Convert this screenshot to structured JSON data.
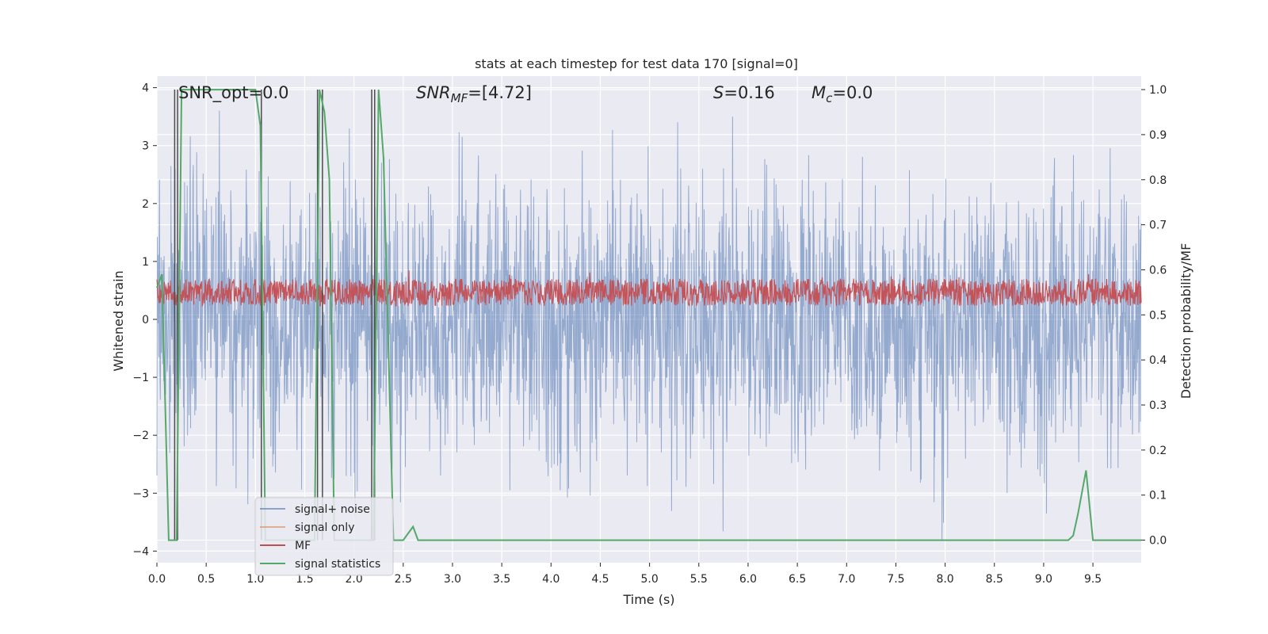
{
  "chart_data": {
    "type": "line",
    "title": "stats at each timestep for test data 170 [signal=0]",
    "xlabel": "Time (s)",
    "ylabel_left": "Whitened strain",
    "ylabel_right": "Detection probability/MF",
    "xlim": [
      0.0,
      9.99
    ],
    "ylim_left": [
      -4.2,
      4.2
    ],
    "ylim_right": [
      -0.05,
      1.03
    ],
    "x_ticks": [
      "0.0",
      "0.5",
      "1.0",
      "1.5",
      "2.0",
      "2.5",
      "3.0",
      "3.5",
      "4.0",
      "4.5",
      "5.0",
      "5.5",
      "6.0",
      "6.5",
      "7.0",
      "7.5",
      "8.0",
      "8.5",
      "9.0",
      "9.5"
    ],
    "y_left_ticks": [
      "4",
      "3",
      "2",
      "1",
      "0",
      "−1",
      "−2",
      "−3",
      "−4"
    ],
    "y_right_ticks": [
      "1.0",
      "0.9",
      "0.8",
      "0.7",
      "0.6",
      "0.5",
      "0.4",
      "0.3",
      "0.2",
      "0.1",
      "0.0"
    ],
    "grid": true,
    "background": "#eaeaf2",
    "legend_position": "lower-left",
    "annotations": {
      "snr_opt": "SNR_opt=0.0",
      "snr_mf_label": "SNR",
      "snr_mf_sub": "MF",
      "snr_mf_value": "=[4.72]",
      "s_label": "S",
      "s_value": "=0.16",
      "mc_label": "M",
      "mc_sub": "c",
      "mc_value": "=0.0"
    },
    "series": [
      {
        "name": "signal+ noise",
        "color": "#4c72b0",
        "axis": "left",
        "description": "whitened strain noise, roughly within ±2.5 with peaks to ±3.8",
        "approx_envelope": [
          -3.8,
          3.8
        ]
      },
      {
        "name": "signal only",
        "color": "#dd8452",
        "axis": "left",
        "values": []
      },
      {
        "name": "MF",
        "color": "#c44e52",
        "axis": "right",
        "approx_range": [
          0.52,
          0.58
        ]
      },
      {
        "name": "signal statistics",
        "color": "#55a868",
        "axis": "right",
        "x": [
          0.0,
          0.05,
          0.12,
          0.2,
          0.25,
          0.3,
          0.5,
          0.8,
          1.0,
          1.05,
          1.1,
          1.6,
          1.65,
          1.7,
          1.75,
          1.8,
          1.85,
          2.0,
          2.2,
          2.25,
          2.3,
          2.4,
          2.5,
          2.6,
          2.65,
          3.0,
          5.0,
          7.0,
          9.0,
          9.25,
          9.3,
          9.35,
          9.43,
          9.5,
          9.6,
          9.99
        ],
        "y": [
          0.56,
          0.59,
          0.0,
          0.0,
          1.0,
          1.0,
          1.0,
          1.0,
          1.0,
          0.92,
          0.0,
          0.0,
          1.0,
          0.95,
          0.8,
          0.0,
          0.0,
          0.0,
          0.0,
          1.0,
          0.85,
          0.0,
          0.0,
          0.03,
          0.0,
          0.0,
          0.0,
          0.0,
          0.0,
          0.0,
          0.01,
          0.06,
          0.155,
          0.0,
          0.0,
          0.0
        ]
      }
    ],
    "detection_markers": {
      "color": "#4d4d4d",
      "x": [
        0.18,
        0.21,
        1.06,
        1.63,
        1.68,
        2.18,
        2.21
      ]
    }
  }
}
